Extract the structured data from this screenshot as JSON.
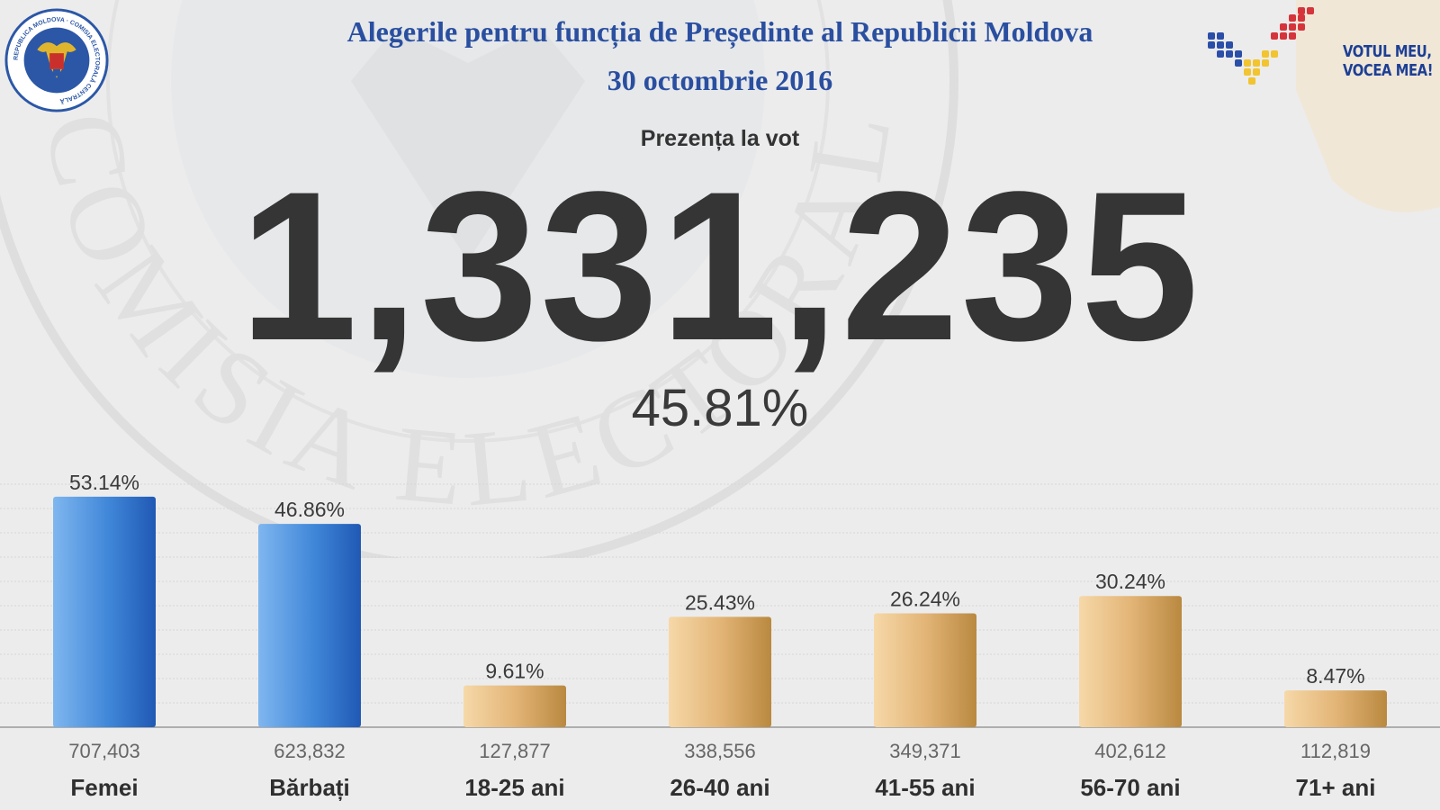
{
  "header": {
    "title_line1": "Alegerile pentru funcția de Președinte al Republicii Moldova",
    "title_line2": "30 octombrie 2016",
    "subtitle": "Prezența la vot",
    "turnout_total": "1,331,235",
    "turnout_percent": "45.81%",
    "brand_line1": "VOTUL MEU,",
    "brand_line2": "VOCEA MEA!"
  },
  "logos": {
    "cec_seal_text": "REPUBLICA MOLDOVA · COMISIA ELECTORALĂ CENTRALĂ",
    "watermark_text": "COMISIA ELECTORALA CENTRALA"
  },
  "colors": {
    "blue_bar": "#3f86d8",
    "gold_bar": "#d9a868",
    "title": "#2a4fa0"
  },
  "chart_data": {
    "type": "bar",
    "categories": [
      "Femei",
      "Bărbați",
      "18-25 ani",
      "26-40 ani",
      "41-55 ani",
      "56-70 ani",
      "71+ ani"
    ],
    "series": [
      {
        "values": [
          53.14,
          46.86,
          9.61,
          25.43,
          26.24,
          30.24,
          8.47
        ]
      }
    ],
    "value_labels": [
      "53.14%",
      "46.86%",
      "9.61%",
      "25.43%",
      "26.24%",
      "30.24%",
      "8.47%"
    ],
    "counts": [
      "707,403",
      "623,832",
      "127,877",
      "338,556",
      "349,371",
      "402,612",
      "112,819"
    ],
    "bar_groups": [
      "blue",
      "blue",
      "gold",
      "gold",
      "gold",
      "gold",
      "gold"
    ],
    "ylim": [
      0,
      60
    ],
    "grid": true,
    "title": "",
    "xlabel": "",
    "ylabel": ""
  }
}
